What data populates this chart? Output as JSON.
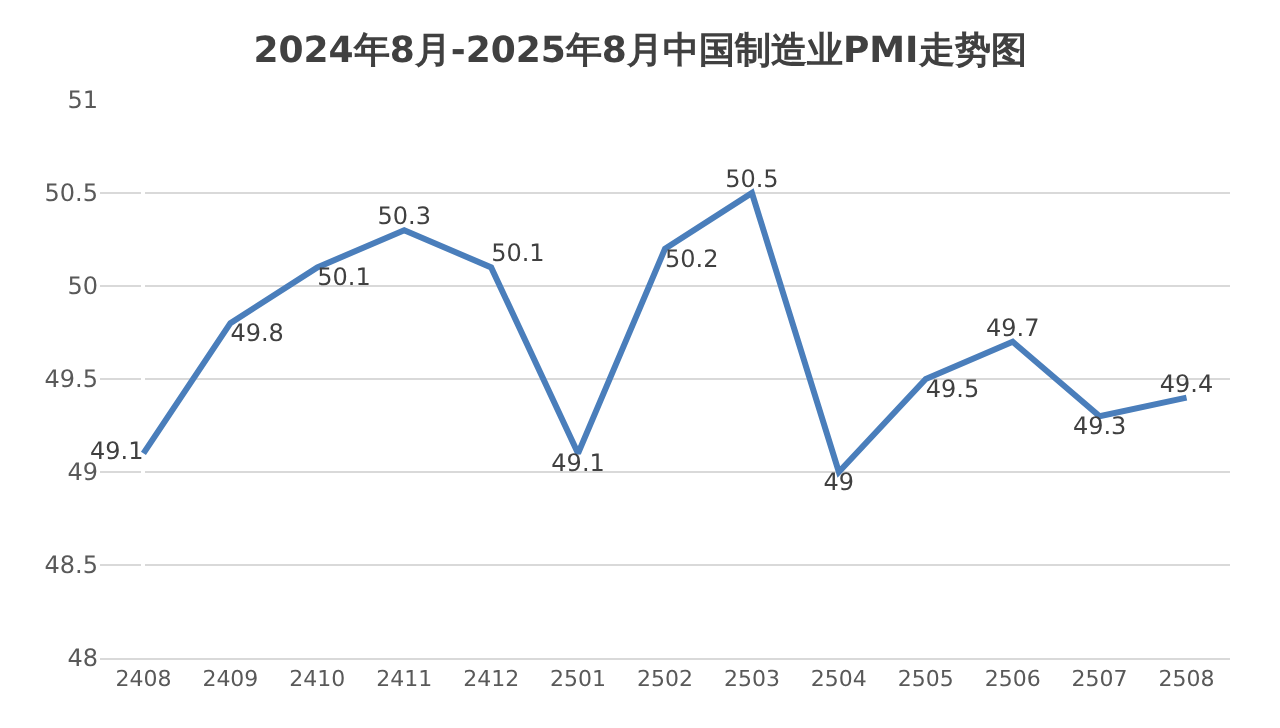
{
  "chart_data": {
    "type": "line",
    "title": "2024年8月-2025年8月中国制造业PMI走势图",
    "categories": [
      "2408",
      "2409",
      "2410",
      "2411",
      "2412",
      "2501",
      "2502",
      "2503",
      "2504",
      "2505",
      "2506",
      "2507",
      "2508"
    ],
    "series": [
      {
        "color": "#4a7ebb",
        "values": [
          49.1,
          49.8,
          50.1,
          50.3,
          50.1,
          49.1,
          50.2,
          50.5,
          49,
          49.5,
          49.7,
          49.3,
          49.4
        ]
      }
    ],
    "ylim": [
      48,
      51
    ],
    "yticks": [
      48,
      48.5,
      49,
      49.5,
      50,
      50.5,
      51
    ],
    "grid": "y",
    "data_labels": true,
    "legend": false,
    "marker": "none",
    "line_style": "solid"
  }
}
